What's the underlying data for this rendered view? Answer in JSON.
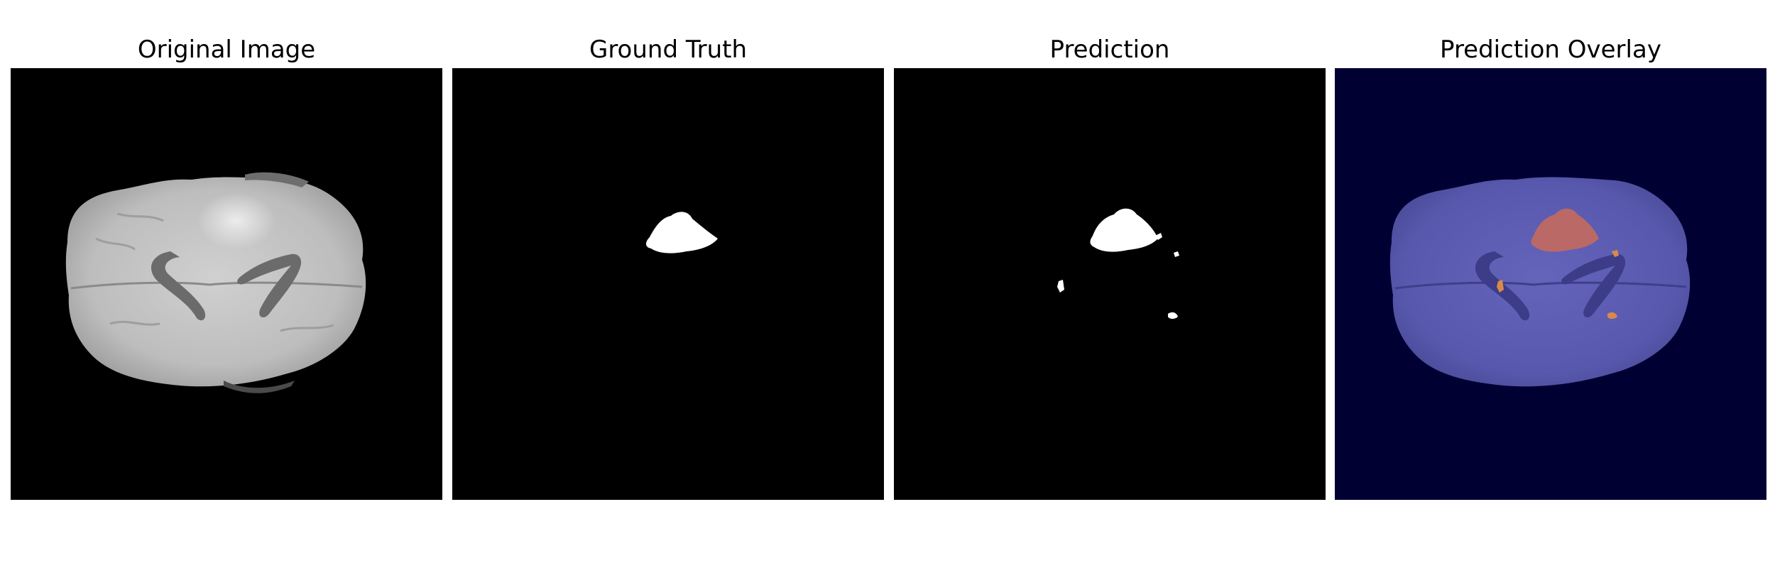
{
  "figure": {
    "panels": [
      {
        "title": "Original Image"
      },
      {
        "title": "Ground Truth"
      },
      {
        "title": "Prediction"
      },
      {
        "title": "Prediction Overlay"
      }
    ]
  },
  "colors": {
    "background": "#000000",
    "overlay_background": "#010033",
    "brain_tissue": "#c8c8c8",
    "overlay_tissue": "#5a5ab2",
    "tumor_overlay": "#c46a5e",
    "mask": "#ffffff"
  }
}
